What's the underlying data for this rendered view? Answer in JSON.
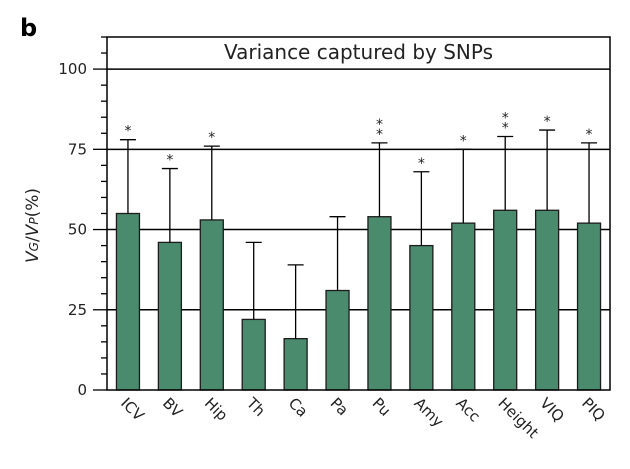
{
  "panel_letter": "b",
  "chart_data": {
    "type": "bar",
    "title": "Variance captured by SNPs",
    "ylabel": "VG/VP(%)",
    "ylabel_parts": {
      "v1": "V",
      "sub1": "G",
      "slash": "/",
      "v2": "V",
      "sub2": "P",
      "unit": "(%)"
    },
    "ylim": [
      0,
      110
    ],
    "yticks": [
      0,
      25,
      50,
      75,
      100
    ],
    "gridlines": [
      25,
      50,
      75,
      100
    ],
    "categories": [
      "ICV",
      "BV",
      "Hip",
      "Th",
      "Ca",
      "Pa",
      "Pu",
      "Amy",
      "Acc",
      "Height",
      "VIQ",
      "PIQ"
    ],
    "values": [
      55,
      46,
      53,
      22,
      16,
      31,
      54,
      45,
      52,
      56,
      56,
      52
    ],
    "error_upper": [
      78,
      69,
      76,
      46,
      39,
      54,
      77,
      68,
      75,
      79,
      81,
      77
    ],
    "significance": [
      "*",
      "*",
      "*",
      "",
      "",
      "",
      "**",
      "*",
      "*",
      "**",
      "*",
      "*"
    ],
    "bar_color": "#4a8a6d"
  }
}
